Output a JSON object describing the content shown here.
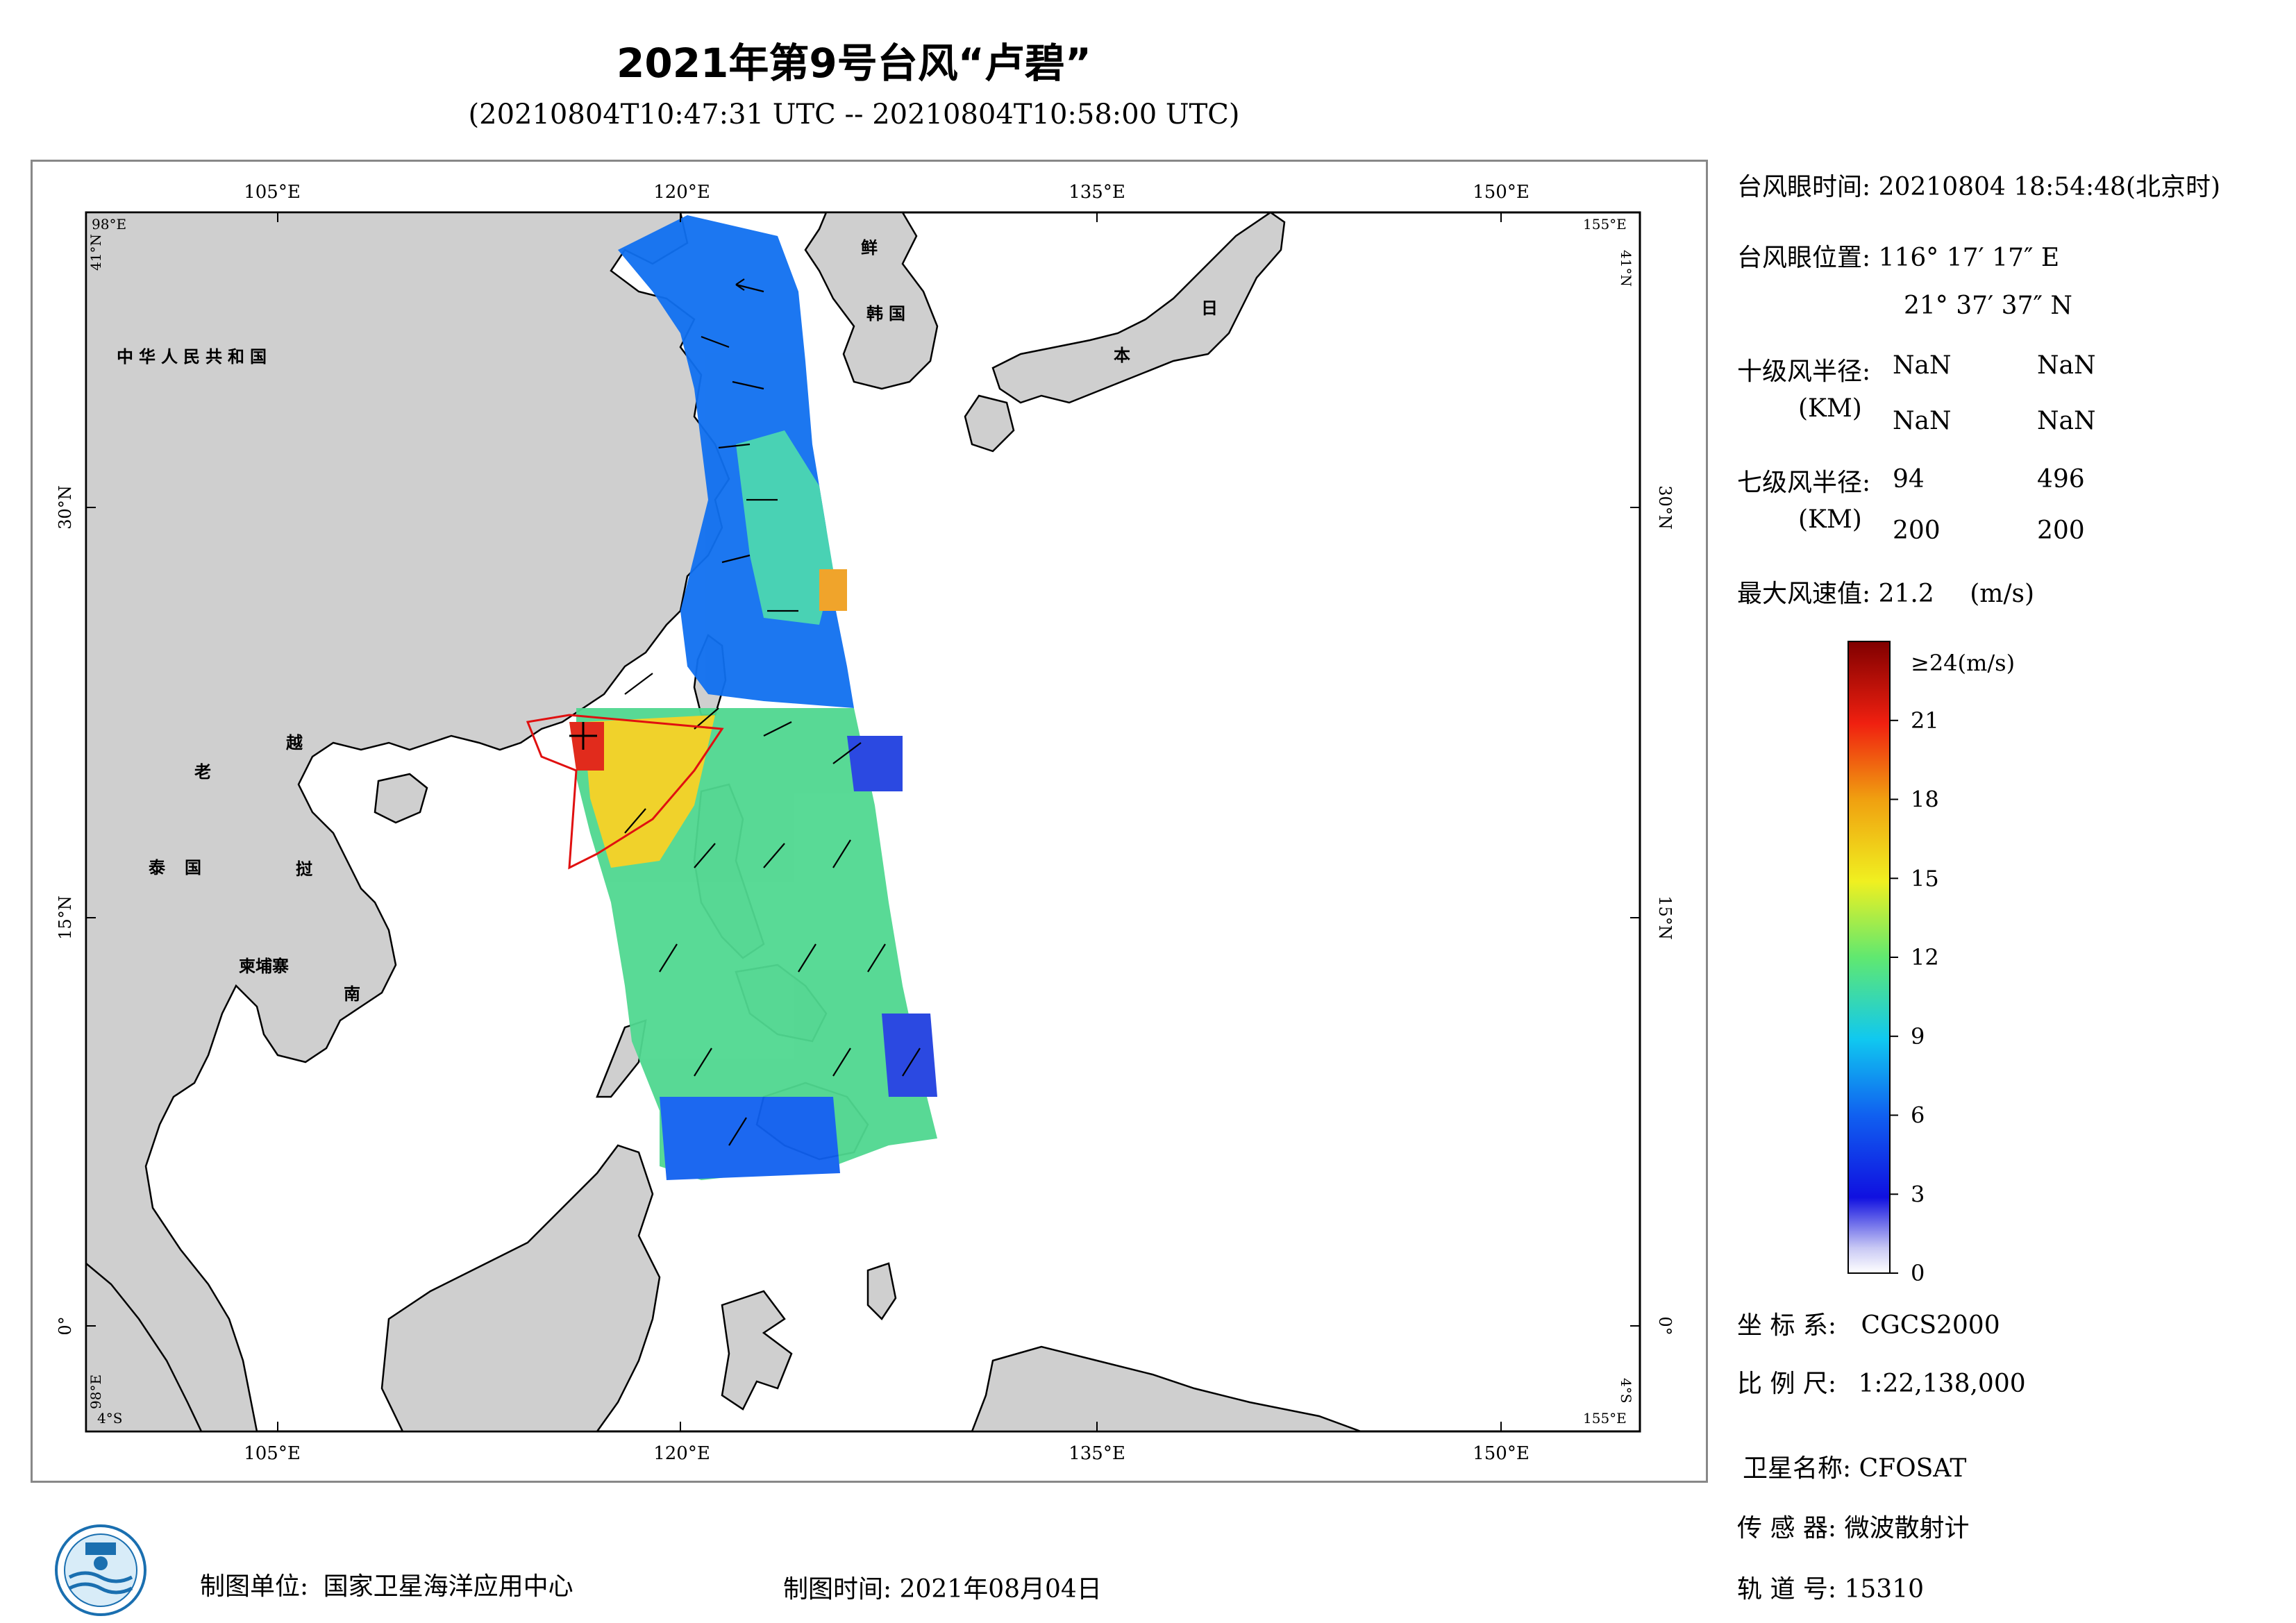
{
  "header": {
    "title": "2021年第9号台风“卢碧”",
    "subtitle": "(20210804T10:47:31 UTC -- 20210804T10:58:00 UTC)"
  },
  "map": {
    "lon_labels": [
      "105°E",
      "120°E",
      "135°E",
      "150°E"
    ],
    "lat_labels": [
      "30°N",
      "15°N",
      "0°"
    ],
    "corner_labels": {
      "top_left_lon": "98°E",
      "top_left_lat": "41°N",
      "top_right_lon": "155°E",
      "top_right_lat": "41°N",
      "bottom_left_lon": "98°E",
      "bottom_left_lat": "4°S",
      "bottom_right_lon": "155°E",
      "bottom_right_lat": "4°S"
    },
    "country_labels": {
      "china": "中华人民共和国",
      "korea_north": "鲜",
      "korea_south": "韩国",
      "japan_1": "日",
      "japan_2": "本",
      "laos": "老",
      "vietnam_1": "越",
      "vietnam_2": "南",
      "thailand": "泰国",
      "cambodia": "柬埔寨",
      "myanmar": "挝"
    },
    "colors": {
      "land": "#cfcfcf",
      "sea": "#ffffff",
      "coast": "#000000",
      "typhoon_circle": "#e01010"
    }
  },
  "info": {
    "eye_time_label": "台风眼时间:",
    "eye_time_value": "20210804 18:54:48(北京时)",
    "eye_pos_label": "台风眼位置:",
    "eye_pos_lon": "116° 17′ 17″ E",
    "eye_pos_lat": "21° 37′ 37″ N",
    "r10_label": "十级风半径:",
    "r10_unit": "(KM)",
    "r10_values": [
      "NaN",
      "NaN",
      "NaN",
      "NaN"
    ],
    "r7_label": "七级风半径:",
    "r7_unit": "(KM)",
    "r7_values": [
      "94",
      "496",
      "200",
      "200"
    ],
    "max_wind_label": "最大风速值:",
    "max_wind_value": "21.2",
    "max_wind_unit": "(m/s)"
  },
  "colorbar": {
    "top_label": "≥24(m/s)",
    "ticks": [
      "21",
      "18",
      "15",
      "12",
      "9",
      "6",
      "3",
      "0"
    ],
    "tick_values": [
      21,
      18,
      15,
      12,
      9,
      6,
      3,
      0
    ],
    "max": 24
  },
  "meta": {
    "coord_label": "坐 标 系:",
    "coord_value": "CGCS2000",
    "scale_label": "比 例 尺:",
    "scale_value": "1:22,138,000",
    "sat_label": "卫星名称:",
    "sat_value": "CFOSAT",
    "sensor_label": "传 感 器:",
    "sensor_value": "微波散射计",
    "orbit_label": "轨 道 号:",
    "orbit_value": "15310"
  },
  "footer": {
    "org_label": "制图单位:",
    "org_value": "国家卫星海洋应用中心",
    "date_label": "制图时间:",
    "date_value": "2021年08月04日"
  }
}
